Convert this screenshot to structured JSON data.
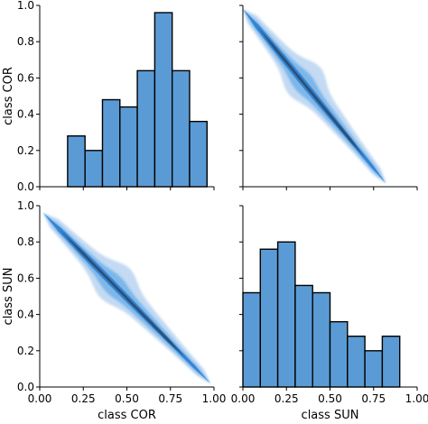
{
  "chart_data": {
    "type": "pairplot",
    "variables": [
      "class COR",
      "class SUN"
    ],
    "colors": {
      "bar_fill": "#5b9bd5",
      "bar_edge": "#000000",
      "kde_light": "#b8d4f0",
      "kde_mid": "#6aaee8",
      "kde_dark": "#2d7fd0",
      "kde_core": "#2e4a6a"
    },
    "panels": [
      {
        "position": "top-left",
        "type": "histogram",
        "variable": "class COR",
        "xlim": [
          0,
          1
        ],
        "ylim": [
          0,
          1
        ],
        "y_ticks": [
          "0.0",
          "0.2",
          "0.4",
          "0.6",
          "0.8",
          "1.0"
        ],
        "ylabel": "class COR",
        "bins": [
          {
            "x0": 0.16,
            "x1": 0.26,
            "height": 0.28
          },
          {
            "x0": 0.26,
            "x1": 0.36,
            "height": 0.2
          },
          {
            "x0": 0.36,
            "x1": 0.46,
            "height": 0.48
          },
          {
            "x0": 0.46,
            "x1": 0.56,
            "height": 0.44
          },
          {
            "x0": 0.56,
            "x1": 0.66,
            "height": 0.64
          },
          {
            "x0": 0.66,
            "x1": 0.76,
            "height": 0.96
          },
          {
            "x0": 0.76,
            "x1": 0.86,
            "height": 0.64
          },
          {
            "x0": 0.86,
            "x1": 0.96,
            "height": 0.36
          }
        ]
      },
      {
        "position": "top-right",
        "type": "kde",
        "x_variable": "class SUN",
        "y_variable": "class COR",
        "xlim": [
          0,
          1
        ],
        "ylim": [
          0,
          1
        ],
        "ridge": {
          "from": [
            0.0,
            0.98
          ],
          "to": [
            0.82,
            0.02
          ]
        }
      },
      {
        "position": "bottom-left",
        "type": "kde",
        "x_variable": "class COR",
        "y_variable": "class SUN",
        "xlim": [
          0,
          1
        ],
        "ylim": [
          0,
          1
        ],
        "y_ticks": [
          "0.0",
          "0.2",
          "0.4",
          "0.6",
          "0.8",
          "1.0"
        ],
        "x_ticks": [
          "0.00",
          "0.25",
          "0.50",
          "0.75",
          "1.00"
        ],
        "xlabel": "class COR",
        "ylabel": "class SUN",
        "ridge": {
          "from": [
            0.02,
            0.96
          ],
          "to": [
            0.98,
            0.02
          ]
        }
      },
      {
        "position": "bottom-right",
        "type": "histogram",
        "variable": "class SUN",
        "xlim": [
          0,
          1
        ],
        "ylim": [
          0,
          1
        ],
        "x_ticks": [
          "0.00",
          "0.25",
          "0.50",
          "0.75",
          "1.00"
        ],
        "xlabel": "class SUN",
        "bins": [
          {
            "x0": 0.0,
            "x1": 0.1,
            "height": 0.52
          },
          {
            "x0": 0.1,
            "x1": 0.2,
            "height": 0.76
          },
          {
            "x0": 0.2,
            "x1": 0.3,
            "height": 0.8
          },
          {
            "x0": 0.3,
            "x1": 0.4,
            "height": 0.56
          },
          {
            "x0": 0.4,
            "x1": 0.5,
            "height": 0.52
          },
          {
            "x0": 0.5,
            "x1": 0.6,
            "height": 0.36
          },
          {
            "x0": 0.6,
            "x1": 0.7,
            "height": 0.28
          },
          {
            "x0": 0.7,
            "x1": 0.8,
            "height": 0.2
          },
          {
            "x0": 0.8,
            "x1": 0.9,
            "height": 0.28
          }
        ]
      }
    ]
  }
}
